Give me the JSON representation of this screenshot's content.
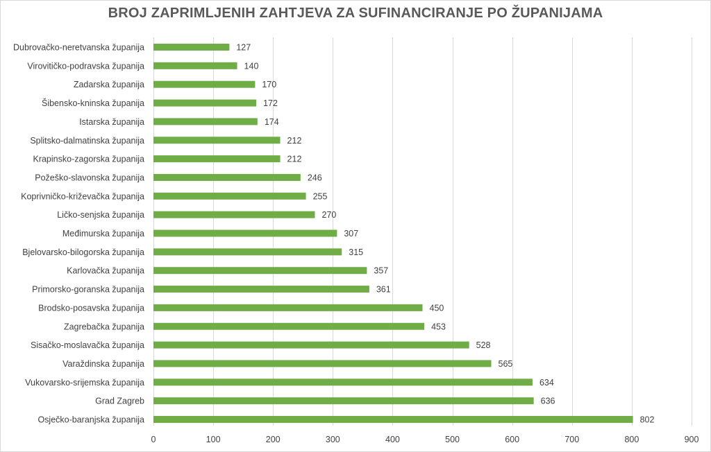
{
  "chart_data": {
    "type": "bar",
    "orientation": "horizontal",
    "title": "BROJ ZAPRIMLJENIH ZAHTJEVA ZA SUFINANCIRANJE PO ŽUPANIJAMA",
    "categories": [
      "Dubrovačko-neretvanska županija",
      "Virovitičko-podravska županija",
      "Zadarska županija",
      "Šibensko-kninska županija",
      "Istarska županija",
      "Splitsko-dalmatinska županija",
      "Krapinsko-zagorska županija",
      "Požeško-slavonska županija",
      "Koprivničko-križevačka županija",
      "Ličko-senjska županija",
      "Međimurska županija",
      "Bjelovarsko-bilogorska županija",
      "Karlovačka županija",
      "Primorsko-goranska županija",
      "Brodsko-posavska županija",
      "Zagrebačka županija",
      "Sisačko-moslavačka županija",
      "Varaždinska županija",
      "Vukovarsko-srijemska županija",
      "Grad Zagreb",
      "Osječko-baranjska županija"
    ],
    "values": [
      127,
      140,
      170,
      172,
      174,
      212,
      212,
      246,
      255,
      270,
      307,
      315,
      357,
      361,
      450,
      453,
      528,
      565,
      634,
      636,
      802
    ],
    "xlim": [
      0,
      900
    ],
    "xticks": [
      0,
      100,
      200,
      300,
      400,
      500,
      600,
      700,
      800,
      900
    ],
    "grid": "vertical",
    "data_labels": true,
    "colors": {
      "bar": "#70ad47",
      "grid": "#d9d9d9",
      "text": "#404040",
      "title": "#595959"
    }
  }
}
